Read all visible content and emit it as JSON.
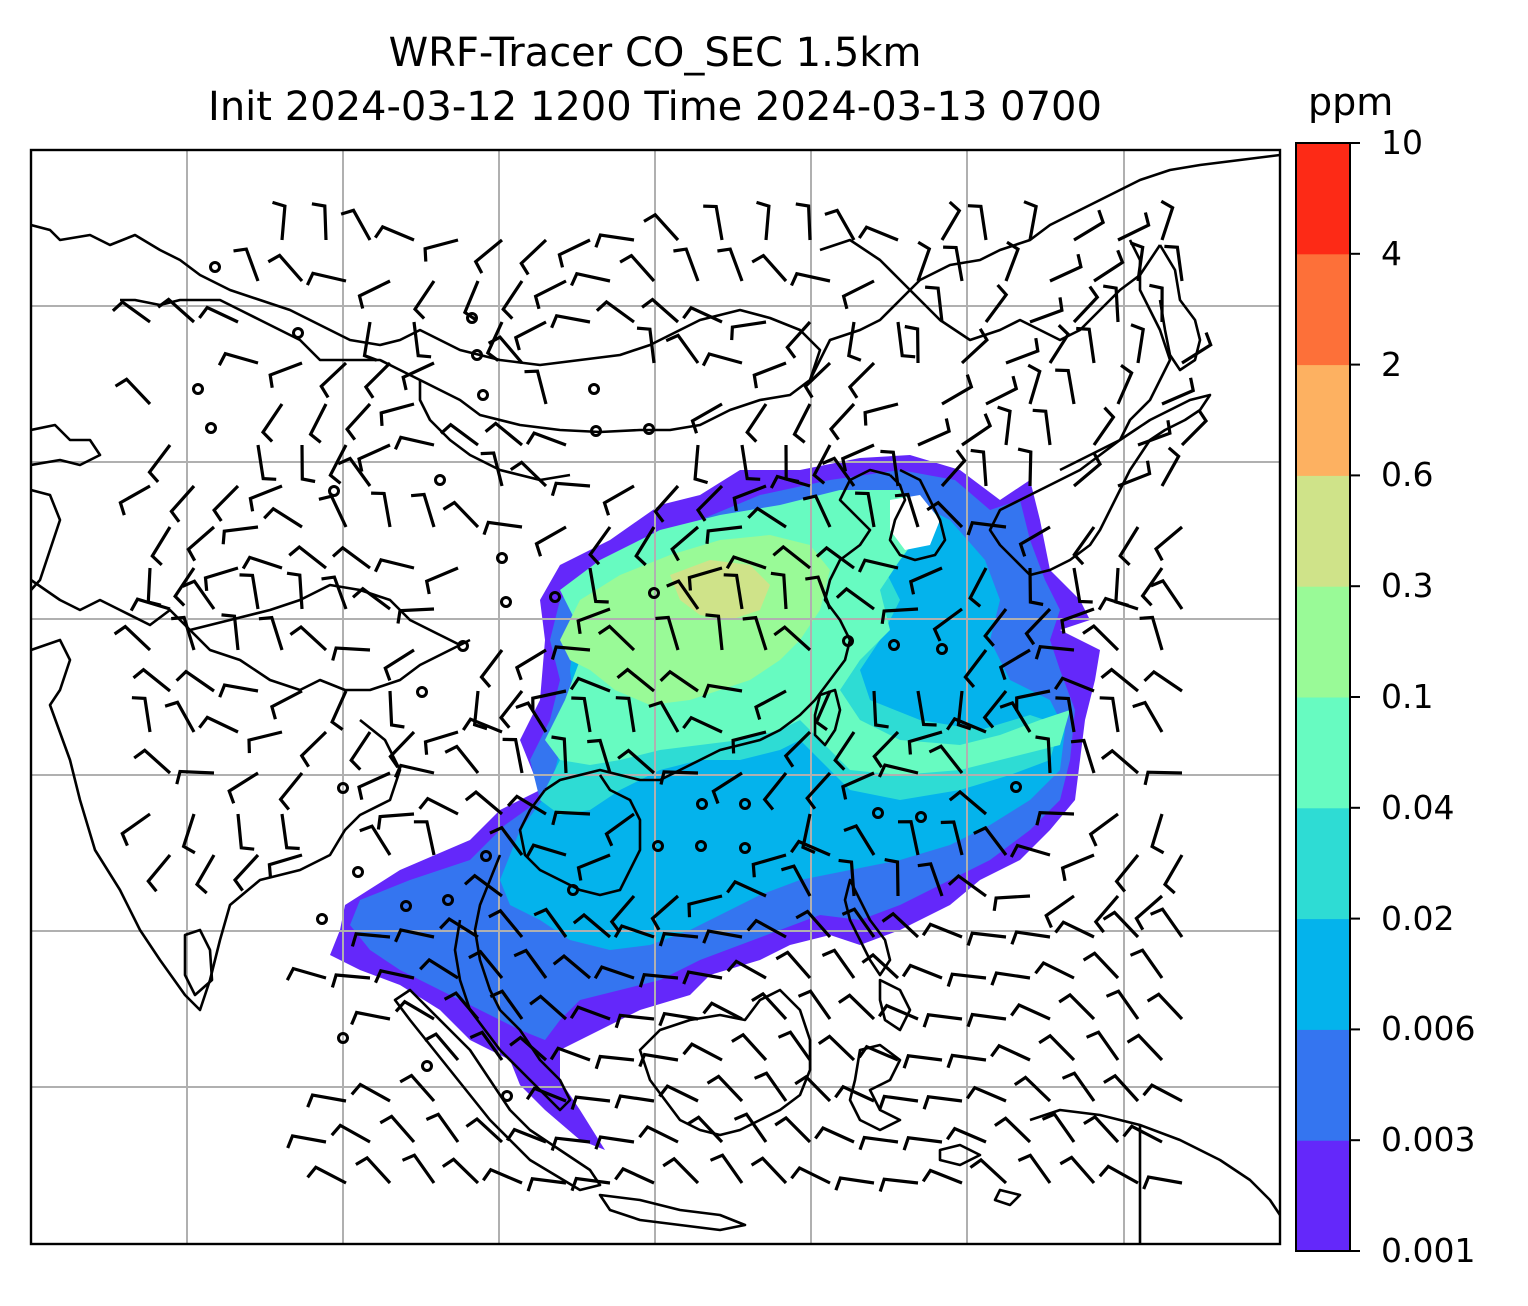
{
  "map": {
    "title_line1": "WRF-Tracer CO_SEC 1.5km",
    "title_line2": "Init 2024-03-12 1200 Time 2024-03-13 0700",
    "variable": "CO_SEC tracer concentration",
    "region": "East / Southeast Asia",
    "gridlines": true,
    "overlay": "wind barbs (black)",
    "coastline_color": "#000000",
    "gridline_color": "#b0b0b0"
  },
  "colorbar": {
    "unit": "ppm",
    "ticks": [
      "0.001",
      "0.003",
      "0.006",
      "0.02",
      "0.04",
      "0.1",
      "0.3",
      "0.6",
      "2",
      "4",
      "10"
    ],
    "colors": [
      "#6428fa",
      "#3475f0",
      "#04b3ec",
      "#2edcd4",
      "#67fbc1",
      "#99fa97",
      "#cfe389",
      "#fdb161",
      "#fd7039",
      "#fd2a16"
    ]
  }
}
